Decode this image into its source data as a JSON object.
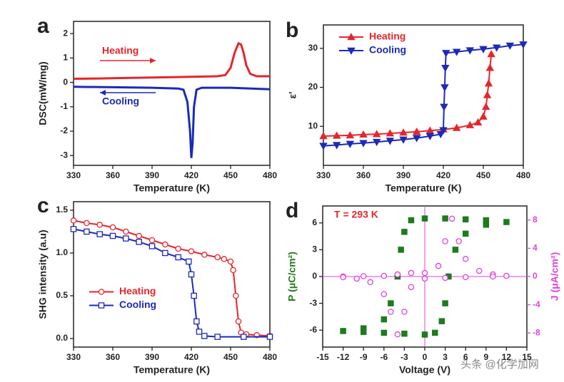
{
  "chart_data": [
    {
      "type": "line",
      "label": "a",
      "xlabel": "Temperature (K)",
      "ylabel": "DSC(mW/mg)",
      "xlim": [
        330,
        480
      ],
      "xticks": [
        330,
        360,
        390,
        420,
        450,
        480
      ],
      "ylim": [
        -3.4,
        2.5
      ],
      "yticks": [
        -3,
        -2,
        -1,
        0,
        1,
        2
      ],
      "legend": "inline",
      "series": [
        {
          "name": "Heating",
          "color": "#e4262c",
          "arrow": "right",
          "x": [
            330,
            350,
            370,
            390,
            410,
            430,
            440,
            446,
            450,
            453,
            456,
            458,
            460,
            462,
            465,
            470,
            480
          ],
          "values": [
            0.15,
            0.16,
            0.18,
            0.2,
            0.22,
            0.24,
            0.25,
            0.3,
            0.6,
            1.2,
            1.6,
            1.55,
            1.2,
            0.7,
            0.35,
            0.25,
            0.25
          ]
        },
        {
          "name": "Cooling",
          "color": "#1c2ab8",
          "arrow": "left",
          "x": [
            330,
            360,
            390,
            410,
            414,
            417,
            419,
            420,
            421,
            422,
            424,
            428,
            450,
            480
          ],
          "values": [
            -0.18,
            -0.2,
            -0.22,
            -0.25,
            -0.3,
            -0.8,
            -2,
            -3.1,
            -2.5,
            -1,
            -0.3,
            -0.22,
            -0.22,
            -0.28
          ]
        }
      ]
    },
    {
      "type": "line",
      "label": "b",
      "xlabel": "Temperature (K)",
      "ylabel": "ε'",
      "xlim": [
        330,
        480
      ],
      "xticks": [
        330,
        360,
        390,
        420,
        450,
        480
      ],
      "ylim": [
        0,
        36
      ],
      "yticks": [
        10,
        20,
        30
      ],
      "legend": "upper left",
      "series": [
        {
          "name": "Heating",
          "color": "#e4262c",
          "marker": "triangle-up",
          "filled": true,
          "x": [
            330,
            340,
            350,
            360,
            370,
            380,
            390,
            400,
            410,
            420,
            430,
            440,
            446,
            450,
            452,
            453,
            454,
            455,
            456
          ],
          "values": [
            7.5,
            7.6,
            7.7,
            7.9,
            8.0,
            8.2,
            8.4,
            8.6,
            8.9,
            9.2,
            9.6,
            10.3,
            11,
            12.5,
            15,
            18,
            21,
            25,
            28.5
          ]
        },
        {
          "name": "Cooling",
          "color": "#1c2ab8",
          "marker": "triangle-down",
          "filled": true,
          "x": [
            480,
            470,
            460,
            450,
            440,
            430,
            422,
            421.5,
            421,
            420.5,
            420,
            418,
            410,
            400,
            390,
            380,
            370,
            360,
            350,
            340,
            330
          ],
          "values": [
            31,
            30.7,
            30.2,
            29.8,
            29.5,
            29.1,
            28.8,
            25,
            20,
            15,
            9,
            8,
            7.5,
            7,
            6.6,
            6.3,
            6,
            5.7,
            5.5,
            5.2,
            5
          ]
        }
      ]
    },
    {
      "type": "line",
      "label": "c",
      "xlabel": "Temperature (K)",
      "ylabel": "SHG intensity (a.u)",
      "xlim": [
        330,
        480
      ],
      "xticks": [
        330,
        360,
        390,
        420,
        450,
        480
      ],
      "ylim": [
        -0.1,
        1.6
      ],
      "yticks": [
        {
          "value": 0,
          "label": "0.0"
        },
        {
          "value": 0.5,
          "label": "0.5"
        },
        {
          "value": 1,
          "label": "1.0"
        },
        {
          "value": 1.5,
          "label": "1.5"
        }
      ],
      "legend": "center left",
      "series": [
        {
          "name": "Heating",
          "color": "#e4262c",
          "marker": "circle",
          "filled": false,
          "x": [
            330,
            340,
            350,
            360,
            370,
            380,
            390,
            400,
            410,
            420,
            430,
            440,
            445,
            450,
            452,
            454,
            456,
            458,
            462,
            470,
            480
          ],
          "values": [
            1.38,
            1.35,
            1.33,
            1.3,
            1.25,
            1.2,
            1.15,
            1.1,
            1.05,
            1.02,
            0.98,
            0.95,
            0.93,
            0.9,
            0.8,
            0.5,
            0.2,
            0.07,
            0.05,
            0.04,
            0.03
          ]
        },
        {
          "name": "Cooling",
          "color": "#1c2ab8",
          "marker": "square",
          "filled": false,
          "x": [
            330,
            340,
            350,
            360,
            370,
            380,
            390,
            400,
            410,
            418,
            420,
            422,
            424,
            426,
            430,
            440,
            460,
            480
          ],
          "values": [
            1.28,
            1.25,
            1.22,
            1.2,
            1.17,
            1.13,
            1.08,
            1.0,
            0.95,
            0.9,
            0.75,
            0.5,
            0.2,
            0.08,
            0.03,
            0.02,
            0.02,
            0.02
          ]
        }
      ]
    },
    {
      "type": "scatter",
      "label": "d",
      "xlabel": "Voltage (V)",
      "ylabel": "P (μC/cm²)",
      "y2label": "J (μA/cm²)",
      "ylabel_color": "#1e7b1e",
      "y2color": "#e040e0",
      "xlim": [
        -15,
        15
      ],
      "xticks": [
        -15,
        -12,
        -9,
        -6,
        -3,
        0,
        3,
        6,
        9,
        12,
        15
      ],
      "ylim": [
        -7.9,
        7.9
      ],
      "yticks": [
        -6,
        -3,
        0,
        3,
        6
      ],
      "y2lim": [
        -10,
        10
      ],
      "y2ticks": [
        -8,
        -4,
        0,
        4,
        8
      ],
      "annotations": [
        {
          "text": "T = 293 K",
          "color": "#e4262c"
        }
      ],
      "series": [
        {
          "color": "#1e7b1e",
          "marker": "square",
          "filled": true,
          "x": [
            -12,
            -9,
            -6,
            -3,
            0,
            1.5,
            2.5,
            3,
            3.5,
            4.5,
            6,
            9,
            12,
            9,
            6,
            3,
            0,
            -2,
            -3,
            -3.5,
            -4,
            -5,
            -6,
            -9
          ],
          "values": [
            -6.1,
            -6.2,
            -6.3,
            -6.4,
            -6.5,
            -6.3,
            -5,
            -3,
            0,
            3,
            4.8,
            5.8,
            6.1,
            6.3,
            6.4,
            6.5,
            6.5,
            6.3,
            5,
            3,
            0,
            -3,
            -4.8,
            -5.8
          ]
        },
        {
          "color": "#e040e0",
          "marker": "circle",
          "filled": false,
          "axis": "y2",
          "x": [
            -12,
            -9,
            -6,
            -4,
            -2,
            0,
            2,
            3,
            4,
            5,
            6,
            8,
            10,
            12,
            10,
            6,
            3,
            0,
            -2,
            -3,
            -4,
            -5,
            -6,
            -8,
            -10,
            -12
          ],
          "values": [
            0,
            0.05,
            0.1,
            0.3,
            0.5,
            0.5,
            1.5,
            5,
            8.2,
            5,
            2.5,
            0.8,
            0.3,
            0.1,
            0,
            -0.1,
            -0.2,
            -0.3,
            -1.5,
            -5,
            -8.2,
            -5,
            -2.5,
            -0.8,
            -0.3,
            -0.1
          ]
        }
      ]
    }
  ],
  "watermark": "头条 @化学加网"
}
